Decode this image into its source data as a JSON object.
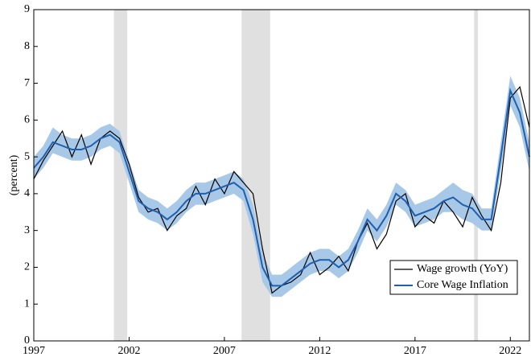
{
  "chart_data": {
    "type": "line",
    "ylabel": "(percent)",
    "xlim": [
      1997,
      2023
    ],
    "xticks": [
      1997,
      2002,
      2007,
      2012,
      2017,
      2022
    ],
    "ylim": [
      0,
      9
    ],
    "yticks": [
      0,
      1,
      2,
      3,
      4,
      5,
      6,
      7,
      8,
      9
    ],
    "legend": "lower right",
    "recessions": [
      [
        2001.2,
        2001.9
      ],
      [
        2007.9,
        2009.4
      ],
      [
        2020.1,
        2020.3
      ]
    ],
    "recession_color": "#e0e0e0",
    "x": [
      1997,
      1997.5,
      1998,
      1998.5,
      1999,
      1999.5,
      2000,
      2000.5,
      2001,
      2001.5,
      2002,
      2002.5,
      2003,
      2003.5,
      2004,
      2004.5,
      2005,
      2005.5,
      2006,
      2006.5,
      2007,
      2007.5,
      2008,
      2008.5,
      2009,
      2009.5,
      2010,
      2010.5,
      2011,
      2011.5,
      2012,
      2012.5,
      2013,
      2013.5,
      2014,
      2014.5,
      2015,
      2015.5,
      2016,
      2016.5,
      2017,
      2017.5,
      2018,
      2018.5,
      2019,
      2019.5,
      2020,
      2020.5,
      2021,
      2021.5,
      2022,
      2022.5,
      2023
    ],
    "series": [
      {
        "name": "Wage growth (YoY)",
        "color": "#000000",
        "values": [
          4.4,
          4.9,
          5.3,
          5.7,
          5.0,
          5.6,
          4.8,
          5.5,
          5.7,
          5.5,
          4.8,
          3.9,
          3.5,
          3.6,
          3.0,
          3.4,
          3.6,
          4.2,
          3.7,
          4.4,
          4.0,
          4.6,
          4.3,
          4.0,
          2.5,
          1.3,
          1.5,
          1.6,
          1.8,
          2.4,
          1.8,
          2.0,
          2.3,
          1.9,
          2.7,
          3.2,
          2.5,
          2.9,
          3.8,
          4.0,
          3.1,
          3.4,
          3.2,
          3.8,
          3.5,
          3.1,
          3.9,
          3.4,
          3.0,
          4.3,
          6.6,
          6.9,
          5.8
        ]
      },
      {
        "name": "Core Wage Inflation",
        "color": "#1f5fae",
        "band_color": "#a8c8e8",
        "values": [
          4.7,
          5.0,
          5.4,
          5.3,
          5.2,
          5.2,
          5.3,
          5.5,
          5.6,
          5.4,
          4.6,
          3.8,
          3.6,
          3.5,
          3.3,
          3.5,
          3.8,
          4.0,
          4.0,
          4.1,
          4.2,
          4.3,
          4.1,
          3.3,
          2.0,
          1.5,
          1.5,
          1.7,
          1.9,
          2.1,
          2.2,
          2.2,
          2.0,
          2.2,
          2.7,
          3.3,
          3.0,
          3.4,
          4.0,
          3.8,
          3.4,
          3.5,
          3.6,
          3.8,
          3.9,
          3.7,
          3.6,
          3.3,
          3.3,
          5.0,
          6.8,
          6.2,
          5.0
        ],
        "band_lower": [
          4.4,
          4.7,
          5.1,
          5.0,
          4.9,
          4.9,
          5.0,
          5.2,
          5.3,
          5.1,
          4.3,
          3.5,
          3.3,
          3.2,
          3.0,
          3.2,
          3.5,
          3.7,
          3.7,
          3.8,
          3.9,
          4.0,
          3.8,
          2.9,
          1.6,
          1.2,
          1.2,
          1.4,
          1.6,
          1.8,
          1.9,
          1.9,
          1.7,
          1.9,
          2.4,
          3.0,
          2.7,
          3.1,
          3.7,
          3.5,
          3.1,
          3.2,
          3.3,
          3.5,
          3.5,
          3.3,
          3.2,
          3.0,
          3.0,
          4.6,
          6.4,
          5.8,
          4.6
        ],
        "band_upper": [
          5.0,
          5.3,
          5.8,
          5.6,
          5.5,
          5.5,
          5.6,
          5.8,
          5.9,
          5.7,
          4.9,
          4.1,
          3.9,
          3.8,
          3.6,
          3.8,
          4.1,
          4.3,
          4.3,
          4.4,
          4.5,
          4.6,
          4.4,
          3.7,
          2.4,
          1.8,
          1.8,
          2.0,
          2.2,
          2.4,
          2.5,
          2.5,
          2.3,
          2.5,
          3.0,
          3.6,
          3.3,
          3.7,
          4.3,
          4.1,
          3.7,
          3.8,
          3.9,
          4.1,
          4.3,
          4.1,
          4.0,
          3.6,
          3.6,
          5.4,
          7.2,
          6.6,
          5.4
        ]
      }
    ]
  }
}
